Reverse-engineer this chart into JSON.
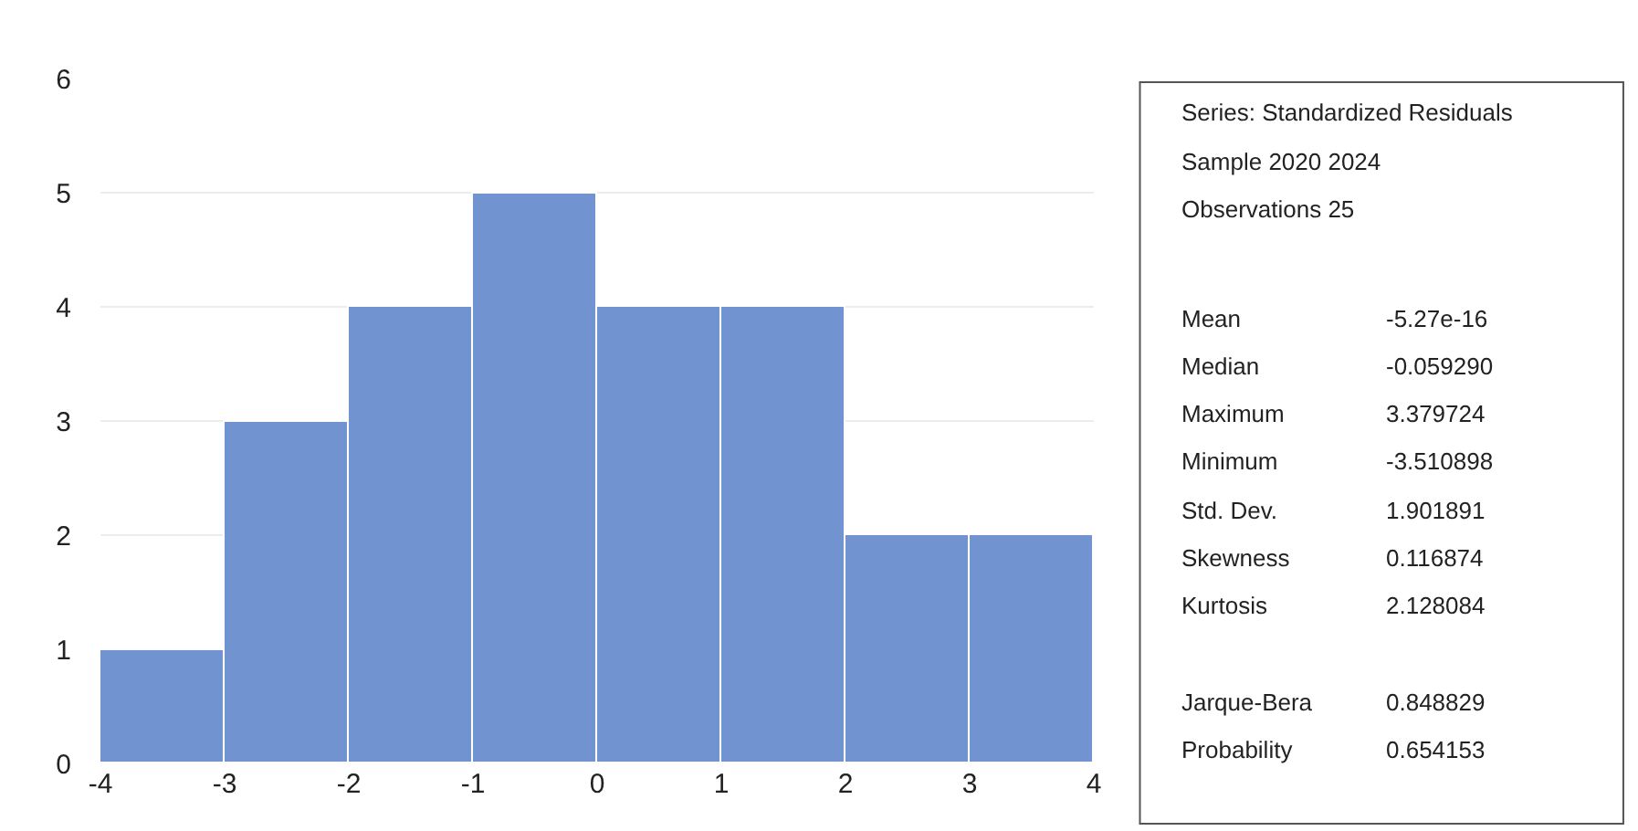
{
  "chart_data": {
    "type": "histogram",
    "bins": [
      -4,
      -3,
      -2,
      -1,
      0,
      1,
      2,
      3,
      4
    ],
    "values": [
      1,
      3,
      4,
      5,
      4,
      4,
      2,
      2
    ],
    "color": "#7194d1",
    "xlim": [
      -4,
      4
    ],
    "xticks": [
      -4,
      -3,
      -2,
      -1,
      0,
      1,
      2,
      3,
      4
    ],
    "ylim": [
      0,
      6
    ],
    "yticks": [
      0,
      1,
      2,
      3,
      4,
      5,
      6
    ],
    "grid": "y",
    "annotations": [
      "Series: Standardized Residuals",
      "Sample 2020 2024",
      "Observations 25",
      "Mean",
      "-5.27e-16",
      "Median",
      "-0.059290",
      "Maximum",
      "3.379724",
      "Minimum",
      "-3.510898",
      "Std. Dev.",
      "1.901891",
      "Skewness",
      "0.116874",
      "Kurtosis",
      "2.128084",
      "Jarque-Bera",
      "0.848829",
      "Probability",
      "0.654153"
    ]
  }
}
